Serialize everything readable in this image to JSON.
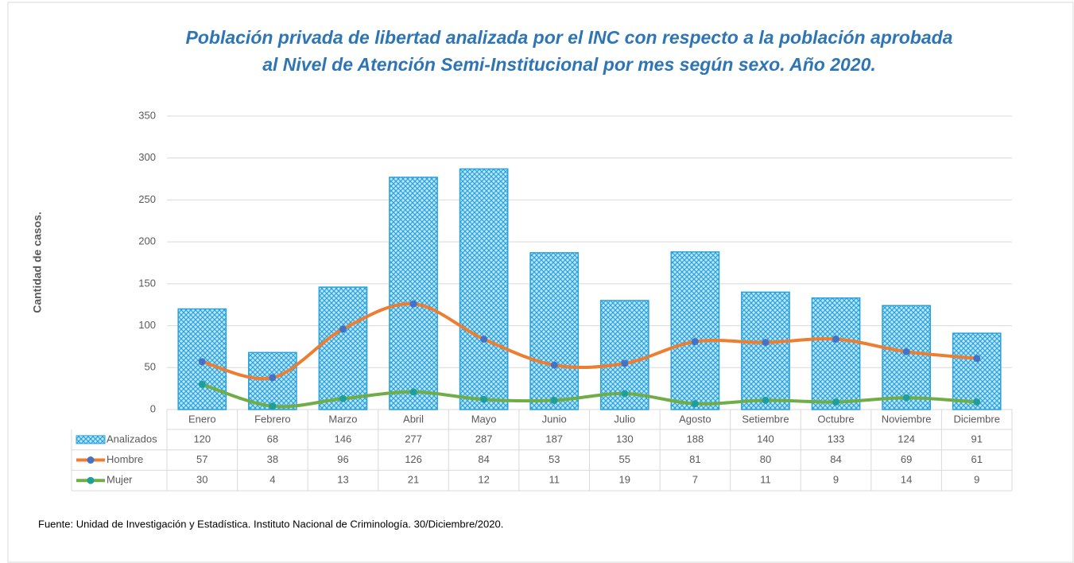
{
  "chart_data": {
    "type": "combo",
    "title": [
      "Población privada de libertad analizada por el INC con respecto a la población aprobada",
      "al Nivel de Atención Semi-Institucional por mes según sexo. Año 2020."
    ],
    "y_label": "Cantidad de casos.",
    "source": "Fuente: Unidad de Investigación y Estadística. Instituto Nacional de Criminología. 30/Diciembre/2020.",
    "categories": [
      "Enero",
      "Febrero",
      "Marzo",
      "Abril",
      "Mayo",
      "Junio",
      "Julio",
      "Agosto",
      "Setiembre",
      "Octubre",
      "Noviembre",
      "Diciembre"
    ],
    "series": [
      {
        "name": "Analizados",
        "type": "bar",
        "color": "#29a3dc",
        "values": [
          120,
          68,
          146,
          277,
          287,
          187,
          130,
          188,
          140,
          133,
          124,
          91
        ]
      },
      {
        "name": "Hombre",
        "type": "line",
        "color": "#ed7d31",
        "marker_color": "#4472c4",
        "values": [
          57,
          38,
          96,
          126,
          84,
          53,
          55,
          81,
          80,
          84,
          69,
          61
        ]
      },
      {
        "name": "Mujer",
        "type": "line",
        "color": "#70ad47",
        "marker_color": "#1f9e9a",
        "values": [
          30,
          4,
          13,
          21,
          12,
          11,
          19,
          7,
          11,
          9,
          14,
          9
        ]
      }
    ],
    "ylim": [
      0,
      350
    ],
    "yticks": [
      0,
      50,
      100,
      150,
      200,
      250,
      300,
      350
    ],
    "grid": true
  }
}
